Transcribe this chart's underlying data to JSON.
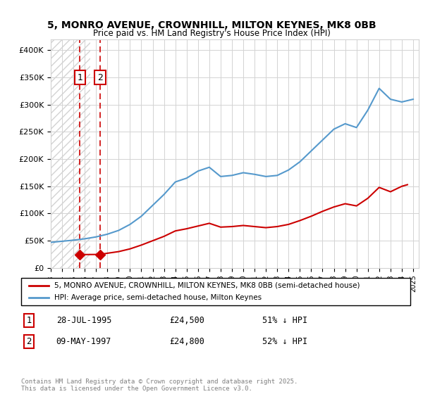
{
  "title_line1": "5, MONRO AVENUE, CROWNHILL, MILTON KEYNES, MK8 0BB",
  "title_line2": "Price paid vs. HM Land Registry's House Price Index (HPI)",
  "legend_line1": "5, MONRO AVENUE, CROWNHILL, MILTON KEYNES, MK8 0BB (semi-detached house)",
  "legend_line2": "HPI: Average price, semi-detached house, Milton Keynes",
  "footer": "Contains HM Land Registry data © Crown copyright and database right 2025.\nThis data is licensed under the Open Government Licence v3.0.",
  "purchase1_date": "28-JUL-1995",
  "purchase1_price": 24500,
  "purchase1_pct": "51% ↓ HPI",
  "purchase2_date": "09-MAY-1997",
  "purchase2_price": 24800,
  "purchase2_pct": "52% ↓ HPI",
  "purchase1_x": 1995.57,
  "purchase2_x": 1997.36,
  "red_color": "#cc0000",
  "blue_color": "#5599cc",
  "hpi_color": "#5599cc",
  "price_color": "#cc0000",
  "ylim": [
    0,
    420000
  ],
  "xlim_start": 1993,
  "xlim_end": 2025.5,
  "hatch_end_year": 1996.5,
  "years": [
    1993,
    1994,
    1995,
    1996,
    1997,
    1998,
    1999,
    2000,
    2001,
    2002,
    2003,
    2004,
    2005,
    2006,
    2007,
    2008,
    2009,
    2010,
    2011,
    2012,
    2013,
    2014,
    2015,
    2016,
    2017,
    2018,
    2019,
    2020,
    2021,
    2022,
    2023,
    2024,
    2025
  ],
  "hpi_values": [
    47000,
    49000,
    51000,
    53500,
    57000,
    62000,
    69000,
    80000,
    95000,
    115000,
    135000,
    158000,
    165000,
    178000,
    185000,
    168000,
    170000,
    175000,
    172000,
    168000,
    170000,
    180000,
    195000,
    215000,
    235000,
    255000,
    265000,
    258000,
    290000,
    330000,
    310000,
    305000,
    310000
  ],
  "price_values_x": [
    1995.57,
    1997.36,
    1998,
    1999,
    2000,
    2001,
    2002,
    2003,
    2004,
    2005,
    2006,
    2007,
    2008,
    2009,
    2010,
    2011,
    2012,
    2013,
    2014,
    2015,
    2016,
    2017,
    2018,
    2019,
    2020,
    2021,
    2022,
    2023,
    2024,
    2024.5
  ],
  "price_values_y": [
    24500,
    24800,
    27000,
    30000,
    35000,
    42000,
    50000,
    58000,
    68000,
    72000,
    77000,
    82000,
    75000,
    76000,
    78000,
    76000,
    74000,
    76000,
    80000,
    87000,
    95000,
    104000,
    112000,
    118000,
    114000,
    128000,
    148000,
    140000,
    150000,
    153000
  ]
}
